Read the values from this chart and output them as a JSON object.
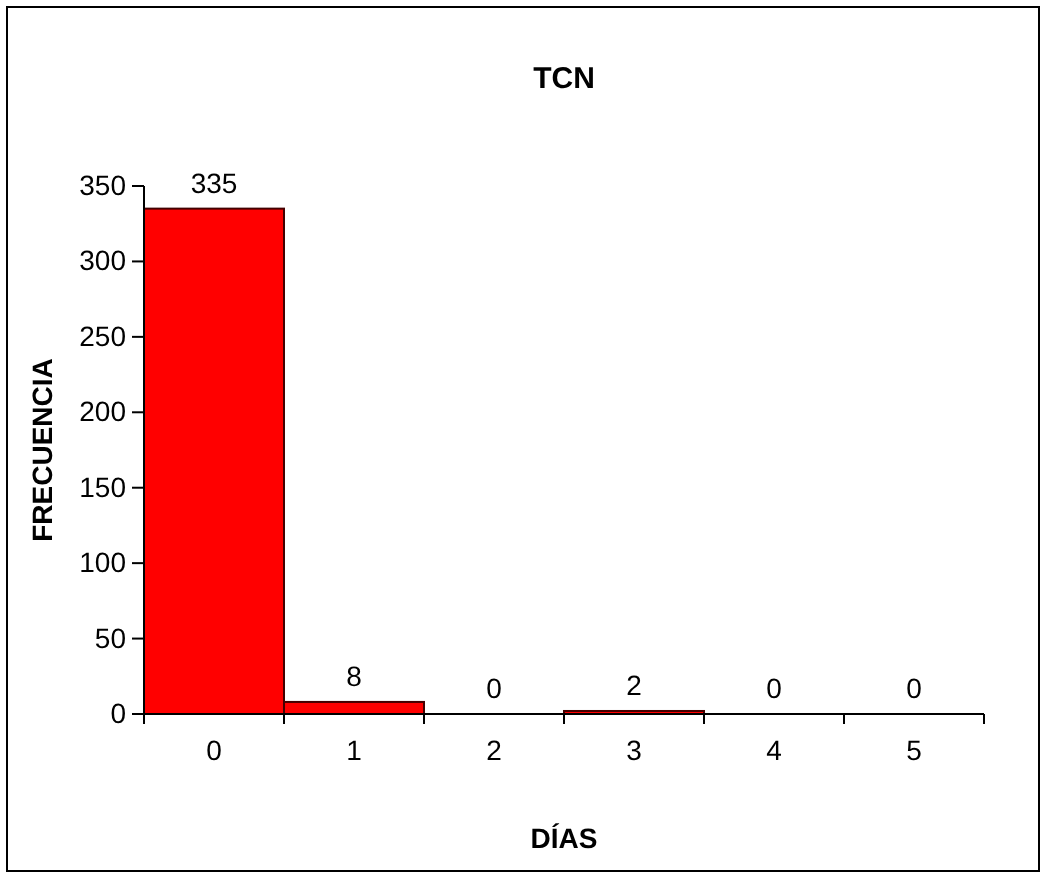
{
  "chart_data": {
    "type": "bar",
    "title": "TCN",
    "xlabel": "DÍAS",
    "ylabel": "FRECUENCIA",
    "categories": [
      "0",
      "1",
      "2",
      "3",
      "4",
      "5"
    ],
    "values": [
      335,
      8,
      0,
      2,
      0,
      0
    ],
    "color": "#ff0000",
    "ylim": [
      0,
      350
    ],
    "yticks": [
      0,
      50,
      100,
      150,
      200,
      250,
      300,
      350
    ],
    "grid": false,
    "data_labels": true
  }
}
